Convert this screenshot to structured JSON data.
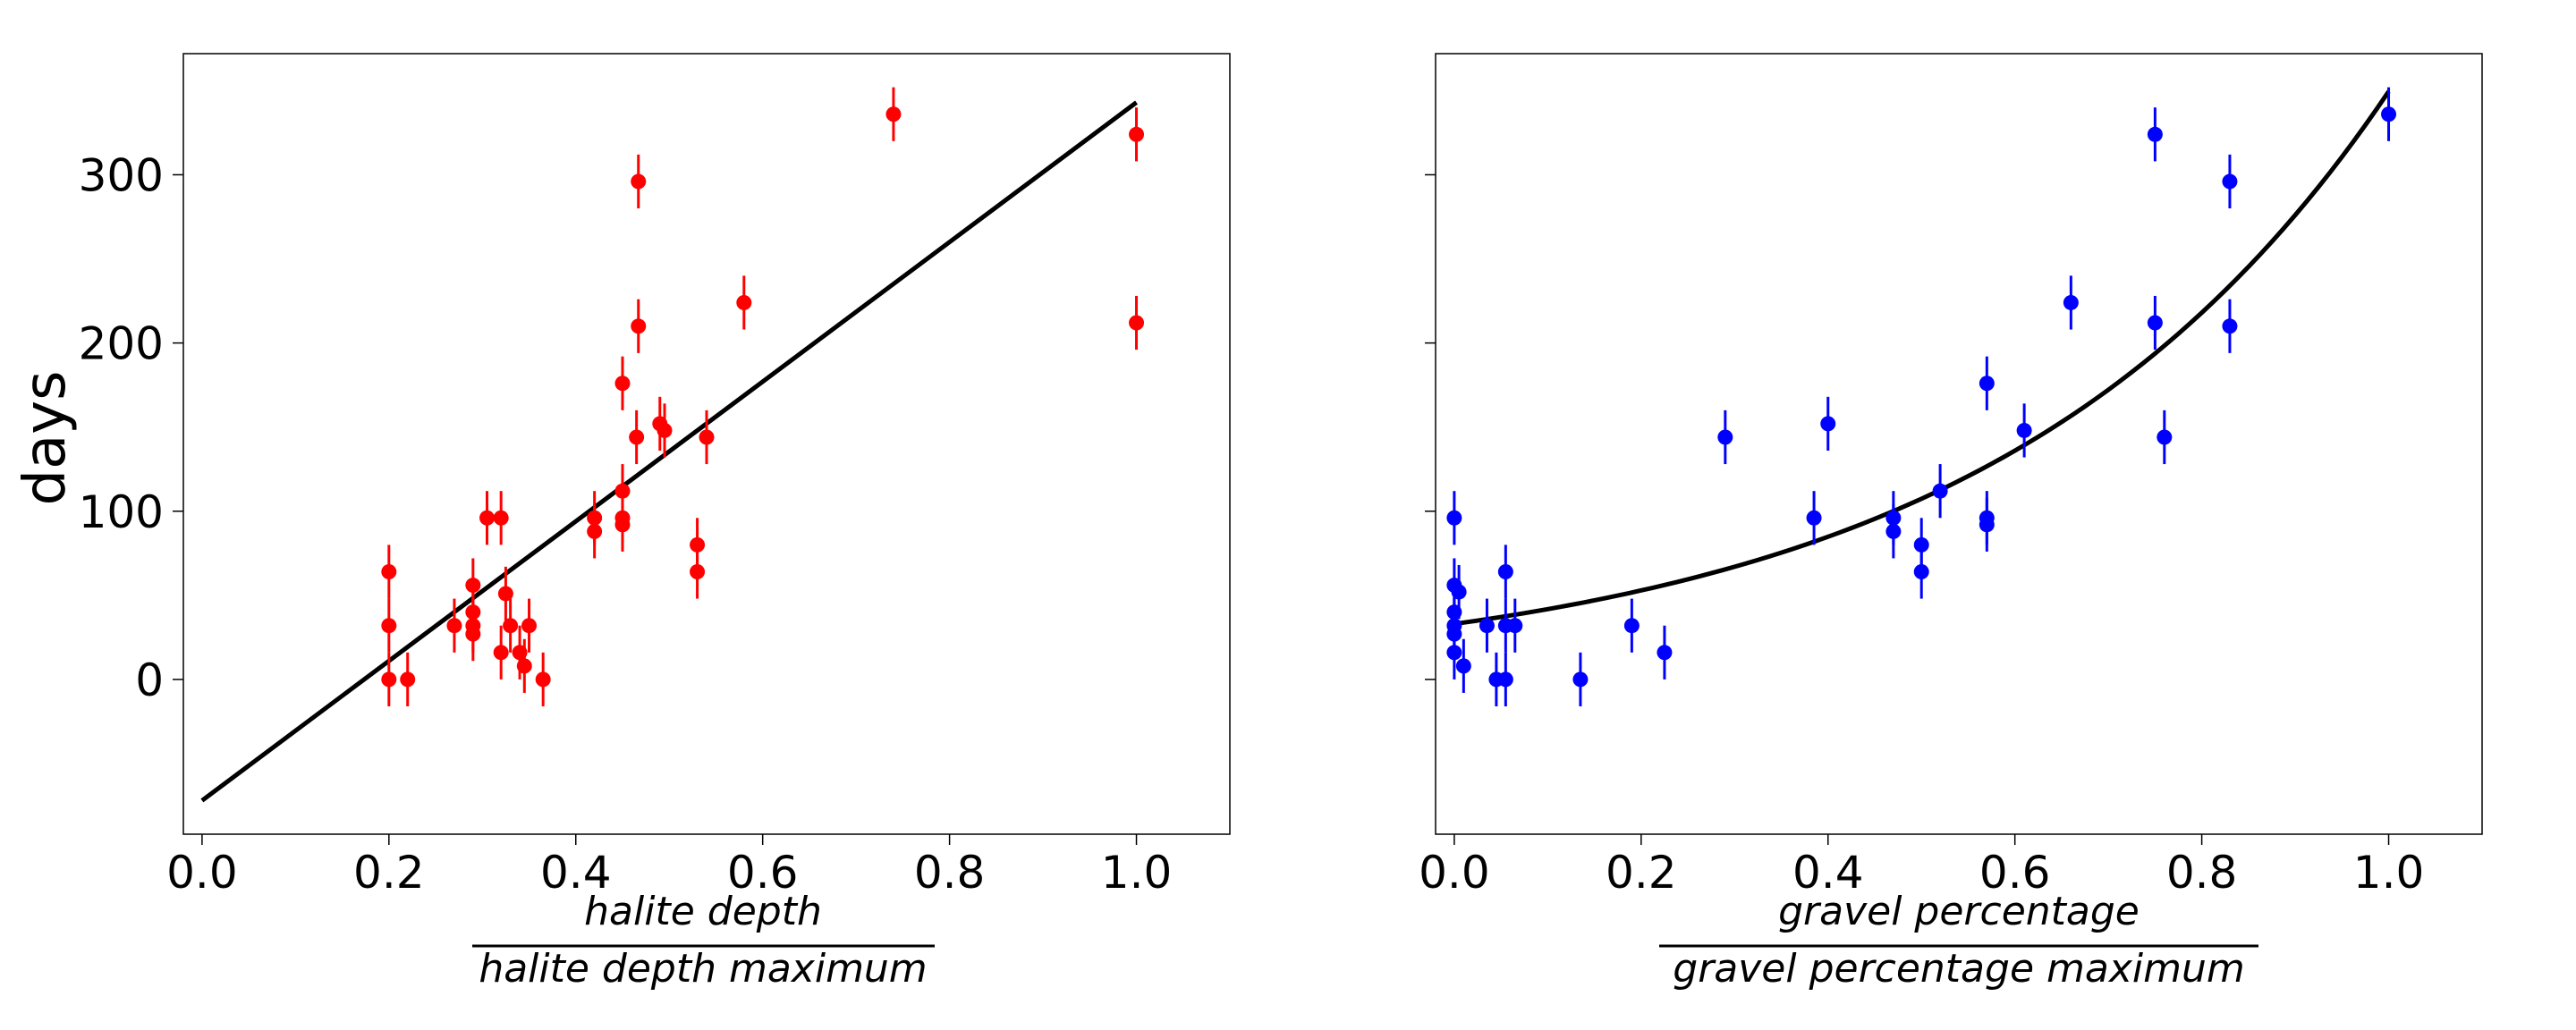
{
  "chart_data": [
    {
      "type": "scatter",
      "ylabel": "days",
      "xlabel": {
        "numerator": "halite depth",
        "denominator": "halite depth maximum"
      },
      "xlim": [
        -0.02,
        1.1
      ],
      "ylim": [
        -92,
        372
      ],
      "xticks": [
        0.0,
        0.2,
        0.4,
        0.6,
        0.8,
        1.0
      ],
      "xtick_labels": [
        "0.0",
        "0.2",
        "0.4",
        "0.6",
        "0.8",
        "1.0"
      ],
      "yticks": [
        0,
        100,
        200,
        300
      ],
      "ytick_labels": [
        "0",
        "100",
        "200",
        "300"
      ],
      "show_ytick_labels": true,
      "grid": false,
      "marker_color": "#ff0000",
      "fit_color": "#000000",
      "fit": {
        "kind": "linear",
        "x0": 0.0,
        "x1": 1.0,
        "y0": -72,
        "y1": 343
      },
      "error_bar": 16,
      "points": [
        [
          0.2,
          64
        ],
        [
          0.2,
          32
        ],
        [
          0.2,
          0
        ],
        [
          0.22,
          0
        ],
        [
          0.27,
          32
        ],
        [
          0.29,
          56
        ],
        [
          0.29,
          40
        ],
        [
          0.29,
          32
        ],
        [
          0.29,
          27
        ],
        [
          0.305,
          96
        ],
        [
          0.32,
          96
        ],
        [
          0.32,
          16
        ],
        [
          0.325,
          51
        ],
        [
          0.33,
          32
        ],
        [
          0.34,
          16
        ],
        [
          0.345,
          8
        ],
        [
          0.35,
          32
        ],
        [
          0.365,
          0
        ],
        [
          0.42,
          96
        ],
        [
          0.42,
          88
        ],
        [
          0.45,
          176
        ],
        [
          0.45,
          112
        ],
        [
          0.45,
          96
        ],
        [
          0.45,
          92
        ],
        [
          0.465,
          144
        ],
        [
          0.467,
          296
        ],
        [
          0.467,
          210
        ],
        [
          0.49,
          152
        ],
        [
          0.495,
          148
        ],
        [
          0.53,
          80
        ],
        [
          0.53,
          64
        ],
        [
          0.54,
          144
        ],
        [
          0.58,
          224
        ],
        [
          0.74,
          336
        ],
        [
          1.0,
          324
        ],
        [
          1.0,
          212
        ]
      ]
    },
    {
      "type": "scatter",
      "ylabel": "",
      "xlabel": {
        "numerator": "gravel percentage",
        "denominator": "gravel percentage maximum"
      },
      "xlim": [
        -0.02,
        1.1
      ],
      "ylim": [
        -92,
        372
      ],
      "xticks": [
        0.0,
        0.2,
        0.4,
        0.6,
        0.8,
        1.0
      ],
      "xtick_labels": [
        "0.0",
        "0.2",
        "0.4",
        "0.6",
        "0.8",
        "1.0"
      ],
      "yticks": [
        0,
        100,
        200,
        300
      ],
      "ytick_labels": [
        "",
        "",
        "",
        ""
      ],
      "show_ytick_labels": false,
      "grid": false,
      "marker_color": "#0000ff",
      "fit_color": "#000000",
      "fit": {
        "kind": "exponential",
        "a": 33,
        "b": 2.36,
        "x0": 0.0,
        "x1": 1.0
      },
      "error_bar": 16,
      "points": [
        [
          0.0,
          96
        ],
        [
          0.0,
          56
        ],
        [
          0.0,
          40
        ],
        [
          0.0,
          32
        ],
        [
          0.0,
          27
        ],
        [
          0.0,
          16
        ],
        [
          0.005,
          52
        ],
        [
          0.01,
          8
        ],
        [
          0.035,
          32
        ],
        [
          0.045,
          0
        ],
        [
          0.055,
          0
        ],
        [
          0.055,
          64
        ],
        [
          0.055,
          32
        ],
        [
          0.065,
          32
        ],
        [
          0.135,
          0
        ],
        [
          0.19,
          32
        ],
        [
          0.225,
          16
        ],
        [
          0.29,
          144
        ],
        [
          0.385,
          96
        ],
        [
          0.4,
          152
        ],
        [
          0.47,
          96
        ],
        [
          0.47,
          88
        ],
        [
          0.5,
          80
        ],
        [
          0.5,
          64
        ],
        [
          0.52,
          112
        ],
        [
          0.57,
          176
        ],
        [
          0.57,
          96
        ],
        [
          0.57,
          92
        ],
        [
          0.61,
          148
        ],
        [
          0.66,
          224
        ],
        [
          0.75,
          324
        ],
        [
          0.75,
          212
        ],
        [
          0.76,
          144
        ],
        [
          0.83,
          296
        ],
        [
          0.83,
          210
        ],
        [
          1.0,
          336
        ]
      ]
    }
  ]
}
